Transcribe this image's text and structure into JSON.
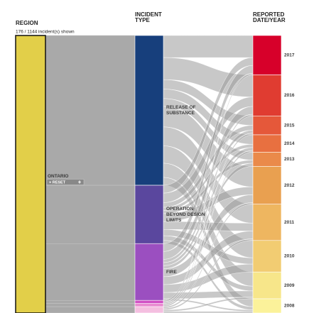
{
  "chart_data": {
    "type": "parallel_sets",
    "status": "176 / 1144 incident(s) shown",
    "reset_label": "× RESET",
    "dimensions": [
      {
        "name": [
          "REGION"
        ],
        "categories": [
          {
            "label": [
              "ONTARIO"
            ],
            "value": 176,
            "color": "#e2cf49"
          }
        ]
      },
      {
        "name": [
          "INCIDENT",
          "TYPE"
        ],
        "categories": [
          {
            "label": [
              "RELEASE OF",
              "SUBSTANCE"
            ],
            "value": 95,
            "color": "#173f7c"
          },
          {
            "label": [
              "OPERATION",
              "BEYOND DESIGN",
              "LIMITS"
            ],
            "value": 37,
            "color": "#5a479e"
          },
          {
            "label": [
              "FIRE"
            ],
            "value": 36,
            "color": "#9b4fc0"
          },
          {
            "label": null,
            "value": 2,
            "color": "#d14fc4"
          },
          {
            "label": null,
            "value": 2,
            "color": "#e98ad0"
          },
          {
            "label": null,
            "value": 4,
            "color": "#f4bfe0"
          }
        ]
      },
      {
        "name": [
          "REPORTED",
          "DATE/YEAR"
        ],
        "categories": [
          {
            "label": [
              "2017"
            ],
            "value": 25,
            "color": "#d7002a"
          },
          {
            "label": [
              "2016"
            ],
            "value": 26,
            "color": "#e03c31"
          },
          {
            "label": [
              "2015"
            ],
            "value": 12,
            "color": "#e5583a"
          },
          {
            "label": [
              "2014"
            ],
            "value": 11,
            "color": "#e87040"
          },
          {
            "label": [
              "2013"
            ],
            "value": 9,
            "color": "#ea8a4a"
          },
          {
            "label": [
              "2012"
            ],
            "value": 24,
            "color": "#e9a050"
          },
          {
            "label": [
              "2011"
            ],
            "value": 23,
            "color": "#eeb660"
          },
          {
            "label": [
              "2010"
            ],
            "value": 20,
            "color": "#f2cc72"
          },
          {
            "label": [
              "2009"
            ],
            "value": 17,
            "color": "#f7e68a"
          },
          {
            "label": [
              "2008"
            ],
            "value": 9,
            "color": "#fbf29a"
          }
        ]
      }
    ],
    "flows": [
      [
        14,
        14,
        6,
        6,
        5,
        13,
        12,
        11,
        9,
        5
      ],
      [
        5,
        6,
        3,
        2,
        2,
        5,
        5,
        4,
        3,
        2
      ],
      [
        5,
        5,
        2,
        2,
        2,
        5,
        5,
        5,
        4,
        1
      ],
      [
        1,
        1,
        0,
        0,
        0,
        0,
        0,
        0,
        0,
        0
      ],
      [
        0,
        0,
        1,
        1,
        0,
        0,
        0,
        0,
        0,
        0
      ],
      [
        0,
        0,
        0,
        0,
        0,
        1,
        1,
        0,
        1,
        1
      ]
    ]
  }
}
